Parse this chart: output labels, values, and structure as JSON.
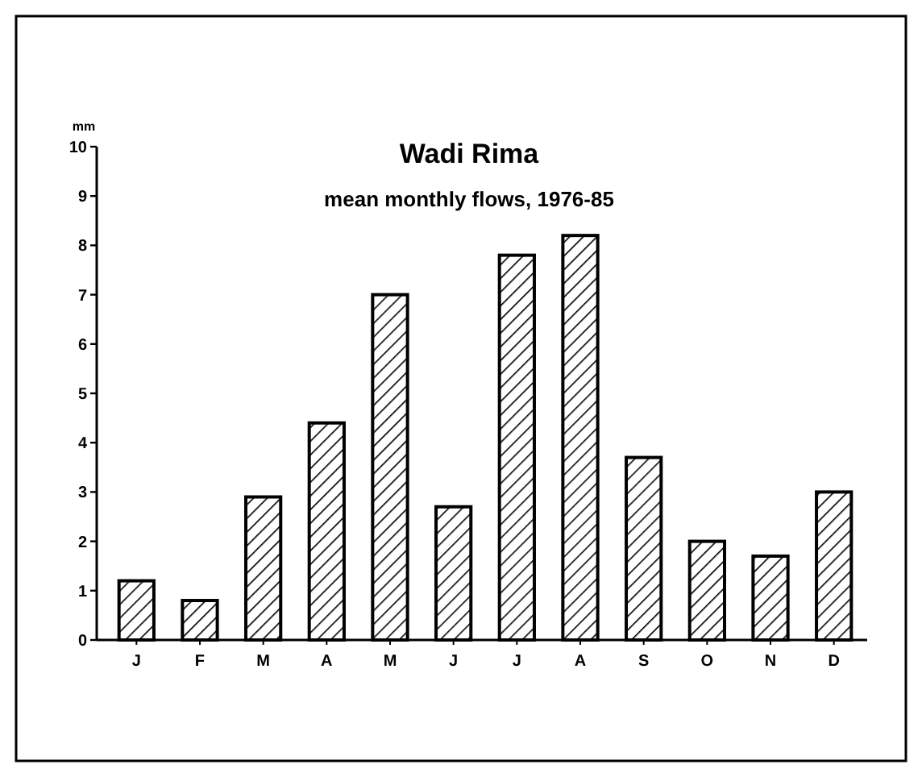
{
  "chart_data": {
    "type": "bar",
    "title": "Wadi Rima",
    "subtitle": "mean monthly flows, 1976-85",
    "ylabel": "mm",
    "categories": [
      "J",
      "F",
      "M",
      "A",
      "M",
      "J",
      "J",
      "A",
      "S",
      "O",
      "N",
      "D"
    ],
    "values": [
      1.2,
      0.8,
      2.9,
      4.4,
      7.0,
      2.7,
      7.8,
      8.2,
      3.7,
      2.0,
      1.7,
      3.0
    ],
    "color": "#000000",
    "ylim": [
      0,
      10
    ],
    "yticks": [
      0,
      1,
      2,
      3,
      4,
      5,
      6,
      7,
      8,
      9,
      10
    ],
    "grid": false
  }
}
